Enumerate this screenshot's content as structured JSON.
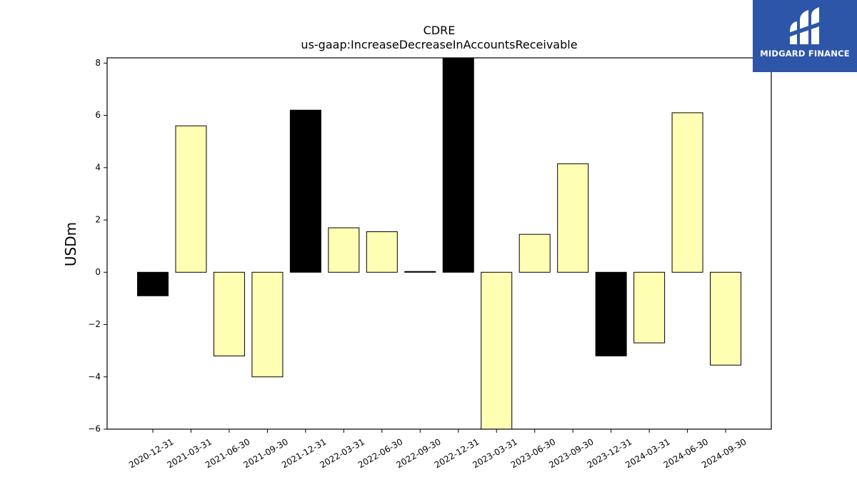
{
  "chart_data": {
    "type": "bar",
    "title": "CDRE",
    "subtitle": "us-gaap:IncreaseDecreaseInAccountsReceivable",
    "xlabel": "",
    "ylabel": "USDm",
    "ylim": [
      -6,
      8.2
    ],
    "yticks": [
      -6,
      -4,
      -2,
      0,
      2,
      4,
      6,
      8
    ],
    "ytick_labels": [
      "−6",
      "−4",
      "−2",
      "0",
      "2",
      "4",
      "6",
      "8"
    ],
    "categories": [
      "2020-12-31",
      "2021-03-31",
      "2021-06-30",
      "2021-09-30",
      "2021-12-31",
      "2022-03-31",
      "2022-06-30",
      "2022-09-30",
      "2022-12-31",
      "2023-03-31",
      "2023-06-30",
      "2023-09-30",
      "2023-12-31",
      "2024-03-31",
      "2024-06-30",
      "2024-09-30"
    ],
    "values": [
      -0.9,
      5.6,
      -3.2,
      -4.0,
      6.2,
      1.7,
      1.55,
      0.03,
      8.2,
      -6.0,
      1.45,
      4.15,
      -3.2,
      -2.7,
      6.1,
      -3.55
    ],
    "bar_colors": [
      "#000000",
      "#ffffb3",
      "#ffffb3",
      "#ffffb3",
      "#000000",
      "#ffffb3",
      "#ffffb3",
      "#000000",
      "#000000",
      "#ffffb3",
      "#ffffb3",
      "#ffffb3",
      "#000000",
      "#ffffb3",
      "#ffffb3",
      "#ffffb3"
    ],
    "grid": false,
    "legend": "none"
  },
  "logo": {
    "text": "MIDGARD FINANCE",
    "background": "#2d56a8"
  }
}
